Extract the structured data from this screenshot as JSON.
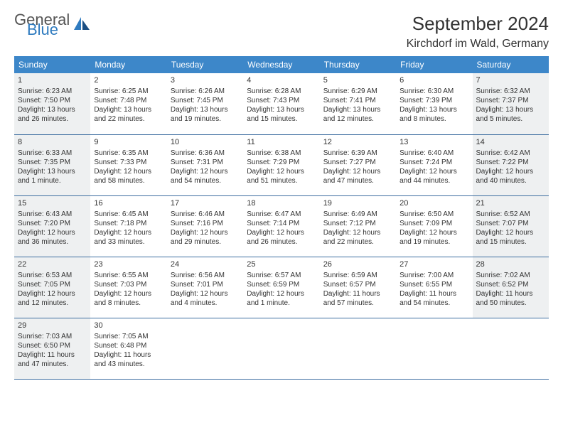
{
  "logo": {
    "general": "General",
    "blue": "Blue"
  },
  "title": "September 2024",
  "subtitle": "Kirchdorf im Wald, Germany",
  "colors": {
    "header_bg": "#3d87c9",
    "header_fg": "#ffffff",
    "cell_border": "#3d6ea0",
    "shaded_bg": "#eef0f1",
    "logo_blue": "#2f7bbf",
    "logo_gray": "#555555",
    "text": "#333333",
    "page_bg": "#ffffff"
  },
  "weekdays": [
    "Sunday",
    "Monday",
    "Tuesday",
    "Wednesday",
    "Thursday",
    "Friday",
    "Saturday"
  ],
  "weeks": [
    [
      {
        "n": "1",
        "shaded": true,
        "sr": "Sunrise: 6:23 AM",
        "ss": "Sunset: 7:50 PM",
        "d1": "Daylight: 13 hours",
        "d2": "and 26 minutes."
      },
      {
        "n": "2",
        "sr": "Sunrise: 6:25 AM",
        "ss": "Sunset: 7:48 PM",
        "d1": "Daylight: 13 hours",
        "d2": "and 22 minutes."
      },
      {
        "n": "3",
        "sr": "Sunrise: 6:26 AM",
        "ss": "Sunset: 7:45 PM",
        "d1": "Daylight: 13 hours",
        "d2": "and 19 minutes."
      },
      {
        "n": "4",
        "sr": "Sunrise: 6:28 AM",
        "ss": "Sunset: 7:43 PM",
        "d1": "Daylight: 13 hours",
        "d2": "and 15 minutes."
      },
      {
        "n": "5",
        "sr": "Sunrise: 6:29 AM",
        "ss": "Sunset: 7:41 PM",
        "d1": "Daylight: 13 hours",
        "d2": "and 12 minutes."
      },
      {
        "n": "6",
        "sr": "Sunrise: 6:30 AM",
        "ss": "Sunset: 7:39 PM",
        "d1": "Daylight: 13 hours",
        "d2": "and 8 minutes."
      },
      {
        "n": "7",
        "shaded": true,
        "sr": "Sunrise: 6:32 AM",
        "ss": "Sunset: 7:37 PM",
        "d1": "Daylight: 13 hours",
        "d2": "and 5 minutes."
      }
    ],
    [
      {
        "n": "8",
        "shaded": true,
        "sr": "Sunrise: 6:33 AM",
        "ss": "Sunset: 7:35 PM",
        "d1": "Daylight: 13 hours",
        "d2": "and 1 minute."
      },
      {
        "n": "9",
        "sr": "Sunrise: 6:35 AM",
        "ss": "Sunset: 7:33 PM",
        "d1": "Daylight: 12 hours",
        "d2": "and 58 minutes."
      },
      {
        "n": "10",
        "sr": "Sunrise: 6:36 AM",
        "ss": "Sunset: 7:31 PM",
        "d1": "Daylight: 12 hours",
        "d2": "and 54 minutes."
      },
      {
        "n": "11",
        "sr": "Sunrise: 6:38 AM",
        "ss": "Sunset: 7:29 PM",
        "d1": "Daylight: 12 hours",
        "d2": "and 51 minutes."
      },
      {
        "n": "12",
        "sr": "Sunrise: 6:39 AM",
        "ss": "Sunset: 7:27 PM",
        "d1": "Daylight: 12 hours",
        "d2": "and 47 minutes."
      },
      {
        "n": "13",
        "sr": "Sunrise: 6:40 AM",
        "ss": "Sunset: 7:24 PM",
        "d1": "Daylight: 12 hours",
        "d2": "and 44 minutes."
      },
      {
        "n": "14",
        "shaded": true,
        "sr": "Sunrise: 6:42 AM",
        "ss": "Sunset: 7:22 PM",
        "d1": "Daylight: 12 hours",
        "d2": "and 40 minutes."
      }
    ],
    [
      {
        "n": "15",
        "shaded": true,
        "sr": "Sunrise: 6:43 AM",
        "ss": "Sunset: 7:20 PM",
        "d1": "Daylight: 12 hours",
        "d2": "and 36 minutes."
      },
      {
        "n": "16",
        "sr": "Sunrise: 6:45 AM",
        "ss": "Sunset: 7:18 PM",
        "d1": "Daylight: 12 hours",
        "d2": "and 33 minutes."
      },
      {
        "n": "17",
        "sr": "Sunrise: 6:46 AM",
        "ss": "Sunset: 7:16 PM",
        "d1": "Daylight: 12 hours",
        "d2": "and 29 minutes."
      },
      {
        "n": "18",
        "sr": "Sunrise: 6:47 AM",
        "ss": "Sunset: 7:14 PM",
        "d1": "Daylight: 12 hours",
        "d2": "and 26 minutes."
      },
      {
        "n": "19",
        "sr": "Sunrise: 6:49 AM",
        "ss": "Sunset: 7:12 PM",
        "d1": "Daylight: 12 hours",
        "d2": "and 22 minutes."
      },
      {
        "n": "20",
        "sr": "Sunrise: 6:50 AM",
        "ss": "Sunset: 7:09 PM",
        "d1": "Daylight: 12 hours",
        "d2": "and 19 minutes."
      },
      {
        "n": "21",
        "shaded": true,
        "sr": "Sunrise: 6:52 AM",
        "ss": "Sunset: 7:07 PM",
        "d1": "Daylight: 12 hours",
        "d2": "and 15 minutes."
      }
    ],
    [
      {
        "n": "22",
        "shaded": true,
        "sr": "Sunrise: 6:53 AM",
        "ss": "Sunset: 7:05 PM",
        "d1": "Daylight: 12 hours",
        "d2": "and 12 minutes."
      },
      {
        "n": "23",
        "sr": "Sunrise: 6:55 AM",
        "ss": "Sunset: 7:03 PM",
        "d1": "Daylight: 12 hours",
        "d2": "and 8 minutes."
      },
      {
        "n": "24",
        "sr": "Sunrise: 6:56 AM",
        "ss": "Sunset: 7:01 PM",
        "d1": "Daylight: 12 hours",
        "d2": "and 4 minutes."
      },
      {
        "n": "25",
        "sr": "Sunrise: 6:57 AM",
        "ss": "Sunset: 6:59 PM",
        "d1": "Daylight: 12 hours",
        "d2": "and 1 minute."
      },
      {
        "n": "26",
        "sr": "Sunrise: 6:59 AM",
        "ss": "Sunset: 6:57 PM",
        "d1": "Daylight: 11 hours",
        "d2": "and 57 minutes."
      },
      {
        "n": "27",
        "sr": "Sunrise: 7:00 AM",
        "ss": "Sunset: 6:55 PM",
        "d1": "Daylight: 11 hours",
        "d2": "and 54 minutes."
      },
      {
        "n": "28",
        "shaded": true,
        "sr": "Sunrise: 7:02 AM",
        "ss": "Sunset: 6:52 PM",
        "d1": "Daylight: 11 hours",
        "d2": "and 50 minutes."
      }
    ],
    [
      {
        "n": "29",
        "shaded": true,
        "sr": "Sunrise: 7:03 AM",
        "ss": "Sunset: 6:50 PM",
        "d1": "Daylight: 11 hours",
        "d2": "and 47 minutes."
      },
      {
        "n": "30",
        "sr": "Sunrise: 7:05 AM",
        "ss": "Sunset: 6:48 PM",
        "d1": "Daylight: 11 hours",
        "d2": "and 43 minutes."
      },
      null,
      null,
      null,
      null,
      null
    ]
  ]
}
